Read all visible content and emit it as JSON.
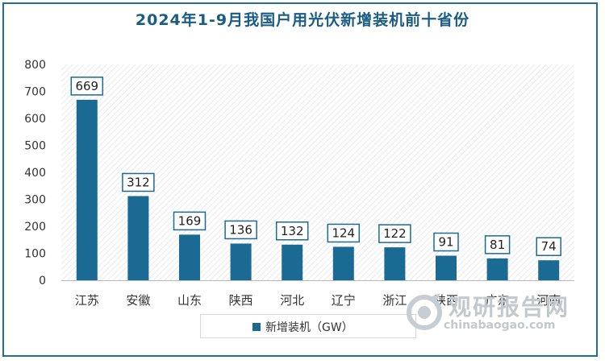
{
  "chart_data": {
    "type": "bar",
    "title": "2024年1-9月我国户用光伏新增装机前十省份",
    "categories": [
      "江苏",
      "安徽",
      "山东",
      "陕西",
      "河北",
      "辽宁",
      "浙江",
      "陕西",
      "广东",
      "河南"
    ],
    "series": [
      {
        "name": "新增装机（GW）",
        "values": [
          669,
          312,
          169,
          136,
          132,
          124,
          122,
          91,
          81,
          74
        ]
      }
    ],
    "ylim": [
      0,
      800
    ],
    "yticks": [
      0,
      100,
      200,
      300,
      400,
      500,
      600,
      700,
      800
    ],
    "grid": false,
    "legend_position": "bottom-center",
    "bar_color": "#1b6a93",
    "label_border_color": "#1b6a93"
  },
  "watermark": {
    "brand": "观研报告网",
    "url": "chinabaogao.com"
  }
}
